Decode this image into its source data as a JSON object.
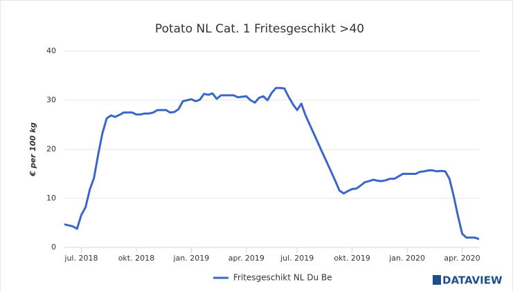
{
  "chart_data": {
    "type": "line",
    "title": "Potato NL Cat. 1 Fritesgeschikt >40",
    "y_label": "€ per 100 kg",
    "logo": "DATAVIEW",
    "categories": [
      null,
      null,
      null,
      null,
      "jul. 2018",
      null,
      null,
      null,
      null,
      null,
      null,
      null,
      null,
      null,
      null,
      null,
      null,
      "okt. 2018",
      null,
      null,
      null,
      null,
      null,
      null,
      null,
      null,
      null,
      null,
      null,
      null,
      "jan. 2019",
      null,
      null,
      null,
      null,
      null,
      null,
      null,
      null,
      null,
      null,
      null,
      null,
      "apr. 2019",
      null,
      null,
      null,
      null,
      null,
      null,
      null,
      null,
      null,
      null,
      null,
      "jul. 2019",
      null,
      null,
      null,
      null,
      null,
      null,
      null,
      null,
      null,
      null,
      null,
      null,
      "okt. 2019",
      null,
      null,
      null,
      null,
      null,
      null,
      null,
      null,
      null,
      null,
      null,
      null,
      "jan. 2020",
      null,
      null,
      null,
      null,
      null,
      null,
      null,
      null,
      null,
      null,
      null,
      null,
      "apr. 2020",
      null,
      null,
      null,
      null
    ],
    "series": [
      {
        "name": "Fritesgeschikt NL Du Be",
        "color": "#3a67c7",
        "values": [
          4.7,
          4.5,
          4.3,
          3.8,
          6.6,
          8.2,
          11.8,
          14.2,
          19,
          23.3,
          26.3,
          26.9,
          26.6,
          27,
          27.5,
          27.5,
          27.5,
          27.1,
          27.1,
          27.3,
          27.3,
          27.5,
          28,
          28,
          28,
          27.5,
          27.6,
          28.2,
          29.8,
          30,
          30.2,
          29.8,
          30.1,
          31.3,
          31.1,
          31.4,
          30.3,
          31,
          31,
          31,
          31,
          30.6,
          30.7,
          30.8,
          30,
          29.5,
          30.5,
          30.8,
          30,
          31.5,
          32.5,
          32.5,
          32.4,
          30.7,
          29.2,
          28,
          29.3,
          26.9,
          25,
          23.1,
          21.2,
          19.3,
          17.4,
          15.5,
          13.6,
          11.6,
          11,
          11.5,
          11.9,
          12,
          12.6,
          13.3,
          13.5,
          13.8,
          13.6,
          13.5,
          13.7,
          14,
          14,
          14.5,
          15,
          15,
          15,
          15,
          15.4,
          15.5,
          15.7,
          15.7,
          15.5,
          15.6,
          15.5,
          14,
          10.5,
          6.5,
          2.8,
          2,
          2,
          2,
          1.7
        ]
      }
    ],
    "ylim": [
      0,
      40
    ],
    "yticks": [
      0,
      10,
      20,
      30,
      40
    ],
    "grid": true,
    "legend": "bottom"
  }
}
